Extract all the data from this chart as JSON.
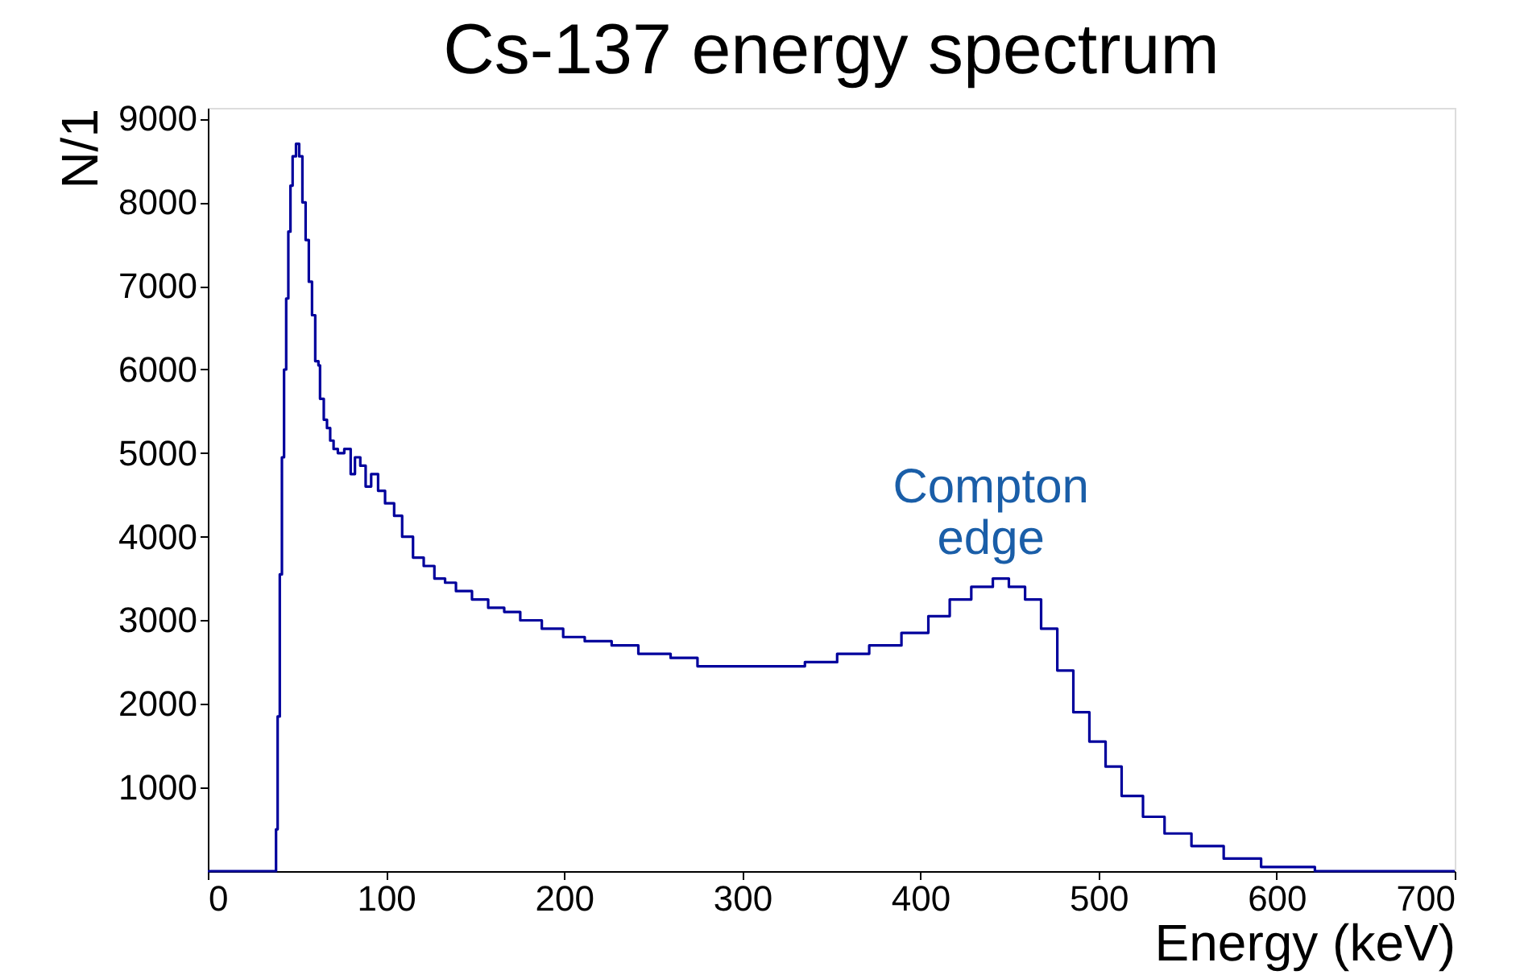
{
  "chart_data": {
    "type": "step",
    "title": "Cs-137 energy spectrum",
    "xlabel": "Energy (keV)",
    "ylabel": "N/1",
    "x": [
      0,
      37.4,
      38.3,
      39.2,
      40.4,
      41.6,
      42.8,
      44.0,
      45.2,
      46.4,
      47.6,
      49.5,
      51.3,
      53.1,
      54.9,
      56.7,
      58.5,
      60.3,
      62.1,
      63.0,
      65.1,
      66.9,
      68.7,
      70.6,
      73.0,
      76.6,
      80.2,
      82.6,
      85.6,
      88.6,
      91.7,
      95.6,
      99.5,
      104.6,
      109.1,
      115.2,
      121.2,
      127.2,
      133.2,
      139.3,
      148.3,
      157.4,
      166.4,
      175.4,
      187.5,
      199.5,
      211.6,
      226.7,
      241.7,
      259.8,
      274.9,
      305.1,
      335.2,
      353.3,
      371.3,
      389.4,
      404.5,
      416.5,
      428.6,
      440.7,
      449.7,
      458.8,
      467.8,
      476.9,
      485.9,
      494.9,
      504.0,
      513.0,
      525.0,
      537.1,
      552.2,
      570.3,
      591.3,
      621.5,
      700
    ],
    "series": [
      {
        "color": "#00009c",
        "values": [
          0,
          0,
          500,
          1850,
          3550,
          4950,
          6000,
          6850,
          7650,
          8200,
          8550,
          8700,
          8550,
          8000,
          7550,
          7050,
          6650,
          6100,
          6050,
          5650,
          5400,
          5300,
          5150,
          5050,
          5000,
          5050,
          4750,
          4950,
          4850,
          4600,
          4750,
          4550,
          4400,
          4250,
          4000,
          3750,
          3650,
          3500,
          3450,
          3350,
          3250,
          3150,
          3100,
          3000,
          2900,
          2800,
          2750,
          2700,
          2600,
          2550,
          2450,
          2450,
          2500,
          2600,
          2700,
          2850,
          3050,
          3250,
          3400,
          3500,
          3400,
          3250,
          2900,
          2400,
          1900,
          1550,
          1250,
          900,
          650,
          450,
          300,
          150,
          50,
          0,
          0
        ]
      }
    ],
    "xlim": [
      0,
      700
    ],
    "xticks": [
      0,
      100,
      200,
      300,
      400,
      500,
      600,
      700
    ],
    "ylim": [
      0,
      9130
    ],
    "yticks": [
      1000,
      2000,
      3000,
      4000,
      5000,
      6000,
      7000,
      8000,
      9000
    ],
    "annotations": [
      "Compton\nedge"
    ],
    "grid": false,
    "marker": "none",
    "line_style": "solid"
  }
}
